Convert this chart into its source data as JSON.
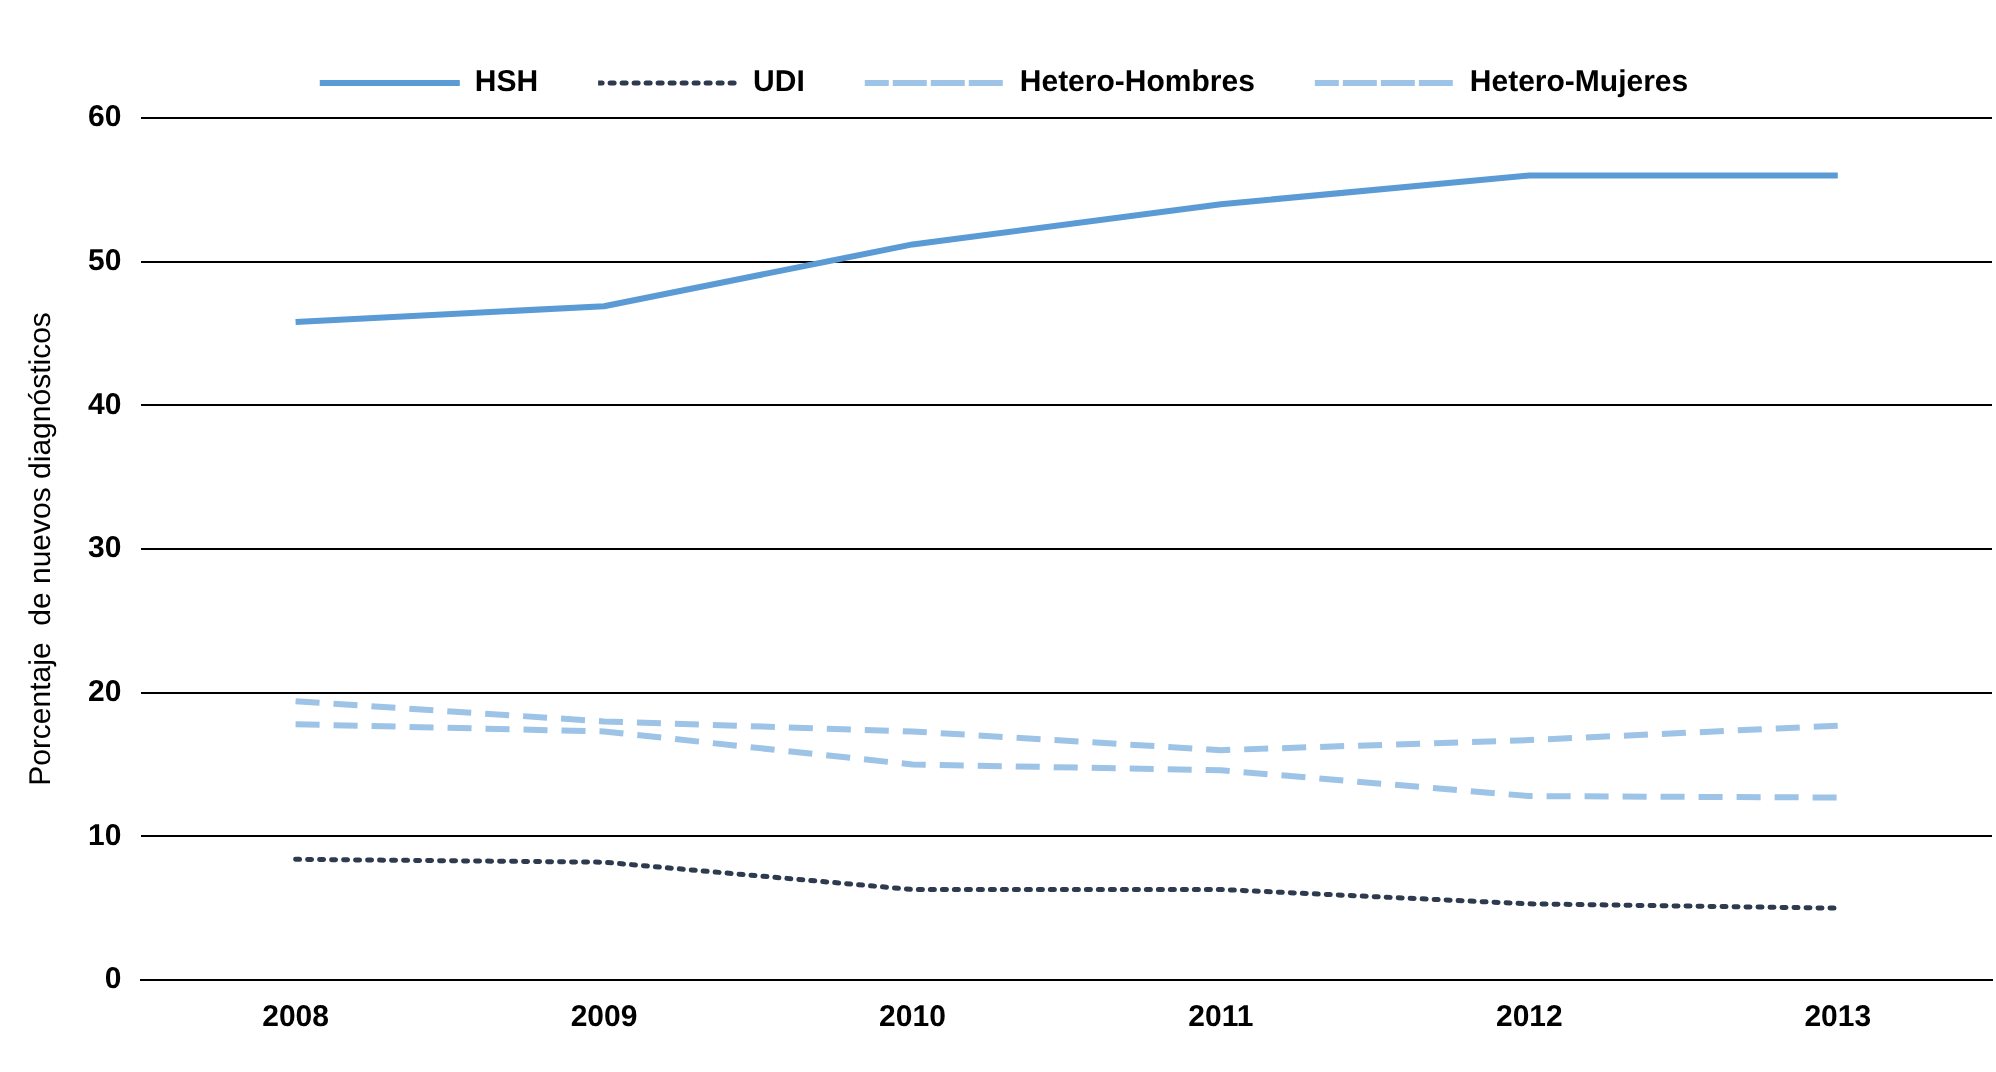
{
  "chart_data": {
    "type": "line",
    "ylabel": "Porcentaje  de nuevos diagnósticos",
    "categories": [
      "2008",
      "2009",
      "2010",
      "2011",
      "2012",
      "2013"
    ],
    "series": [
      {
        "name": "HSH",
        "color": "#5b9bd5",
        "line_style": "solid",
        "values": [
          45.8,
          46.9,
          51.2,
          54.0,
          56.0,
          56.0
        ]
      },
      {
        "name": "UDI",
        "color": "#2e3b4e",
        "line_style": "dotted",
        "values": [
          8.4,
          8.2,
          6.3,
          6.3,
          5.3,
          5.0
        ]
      },
      {
        "name": "Hetero-Hombres",
        "color": "#9dc3e6",
        "line_style": "dashed",
        "values": [
          19.4,
          18.0,
          17.3,
          16.0,
          16.7,
          17.7
        ]
      },
      {
        "name": "Hetero-Mujeres",
        "color": "#9dc3e6",
        "line_style": "dashed",
        "values": [
          17.8,
          17.3,
          15.0,
          14.6,
          12.8,
          12.7
        ]
      }
    ],
    "ylim": [
      0,
      60
    ],
    "yticks": [
      0,
      10,
      20,
      30,
      40,
      50,
      60
    ],
    "grid": "y",
    "legend": "top",
    "marker": "none"
  }
}
